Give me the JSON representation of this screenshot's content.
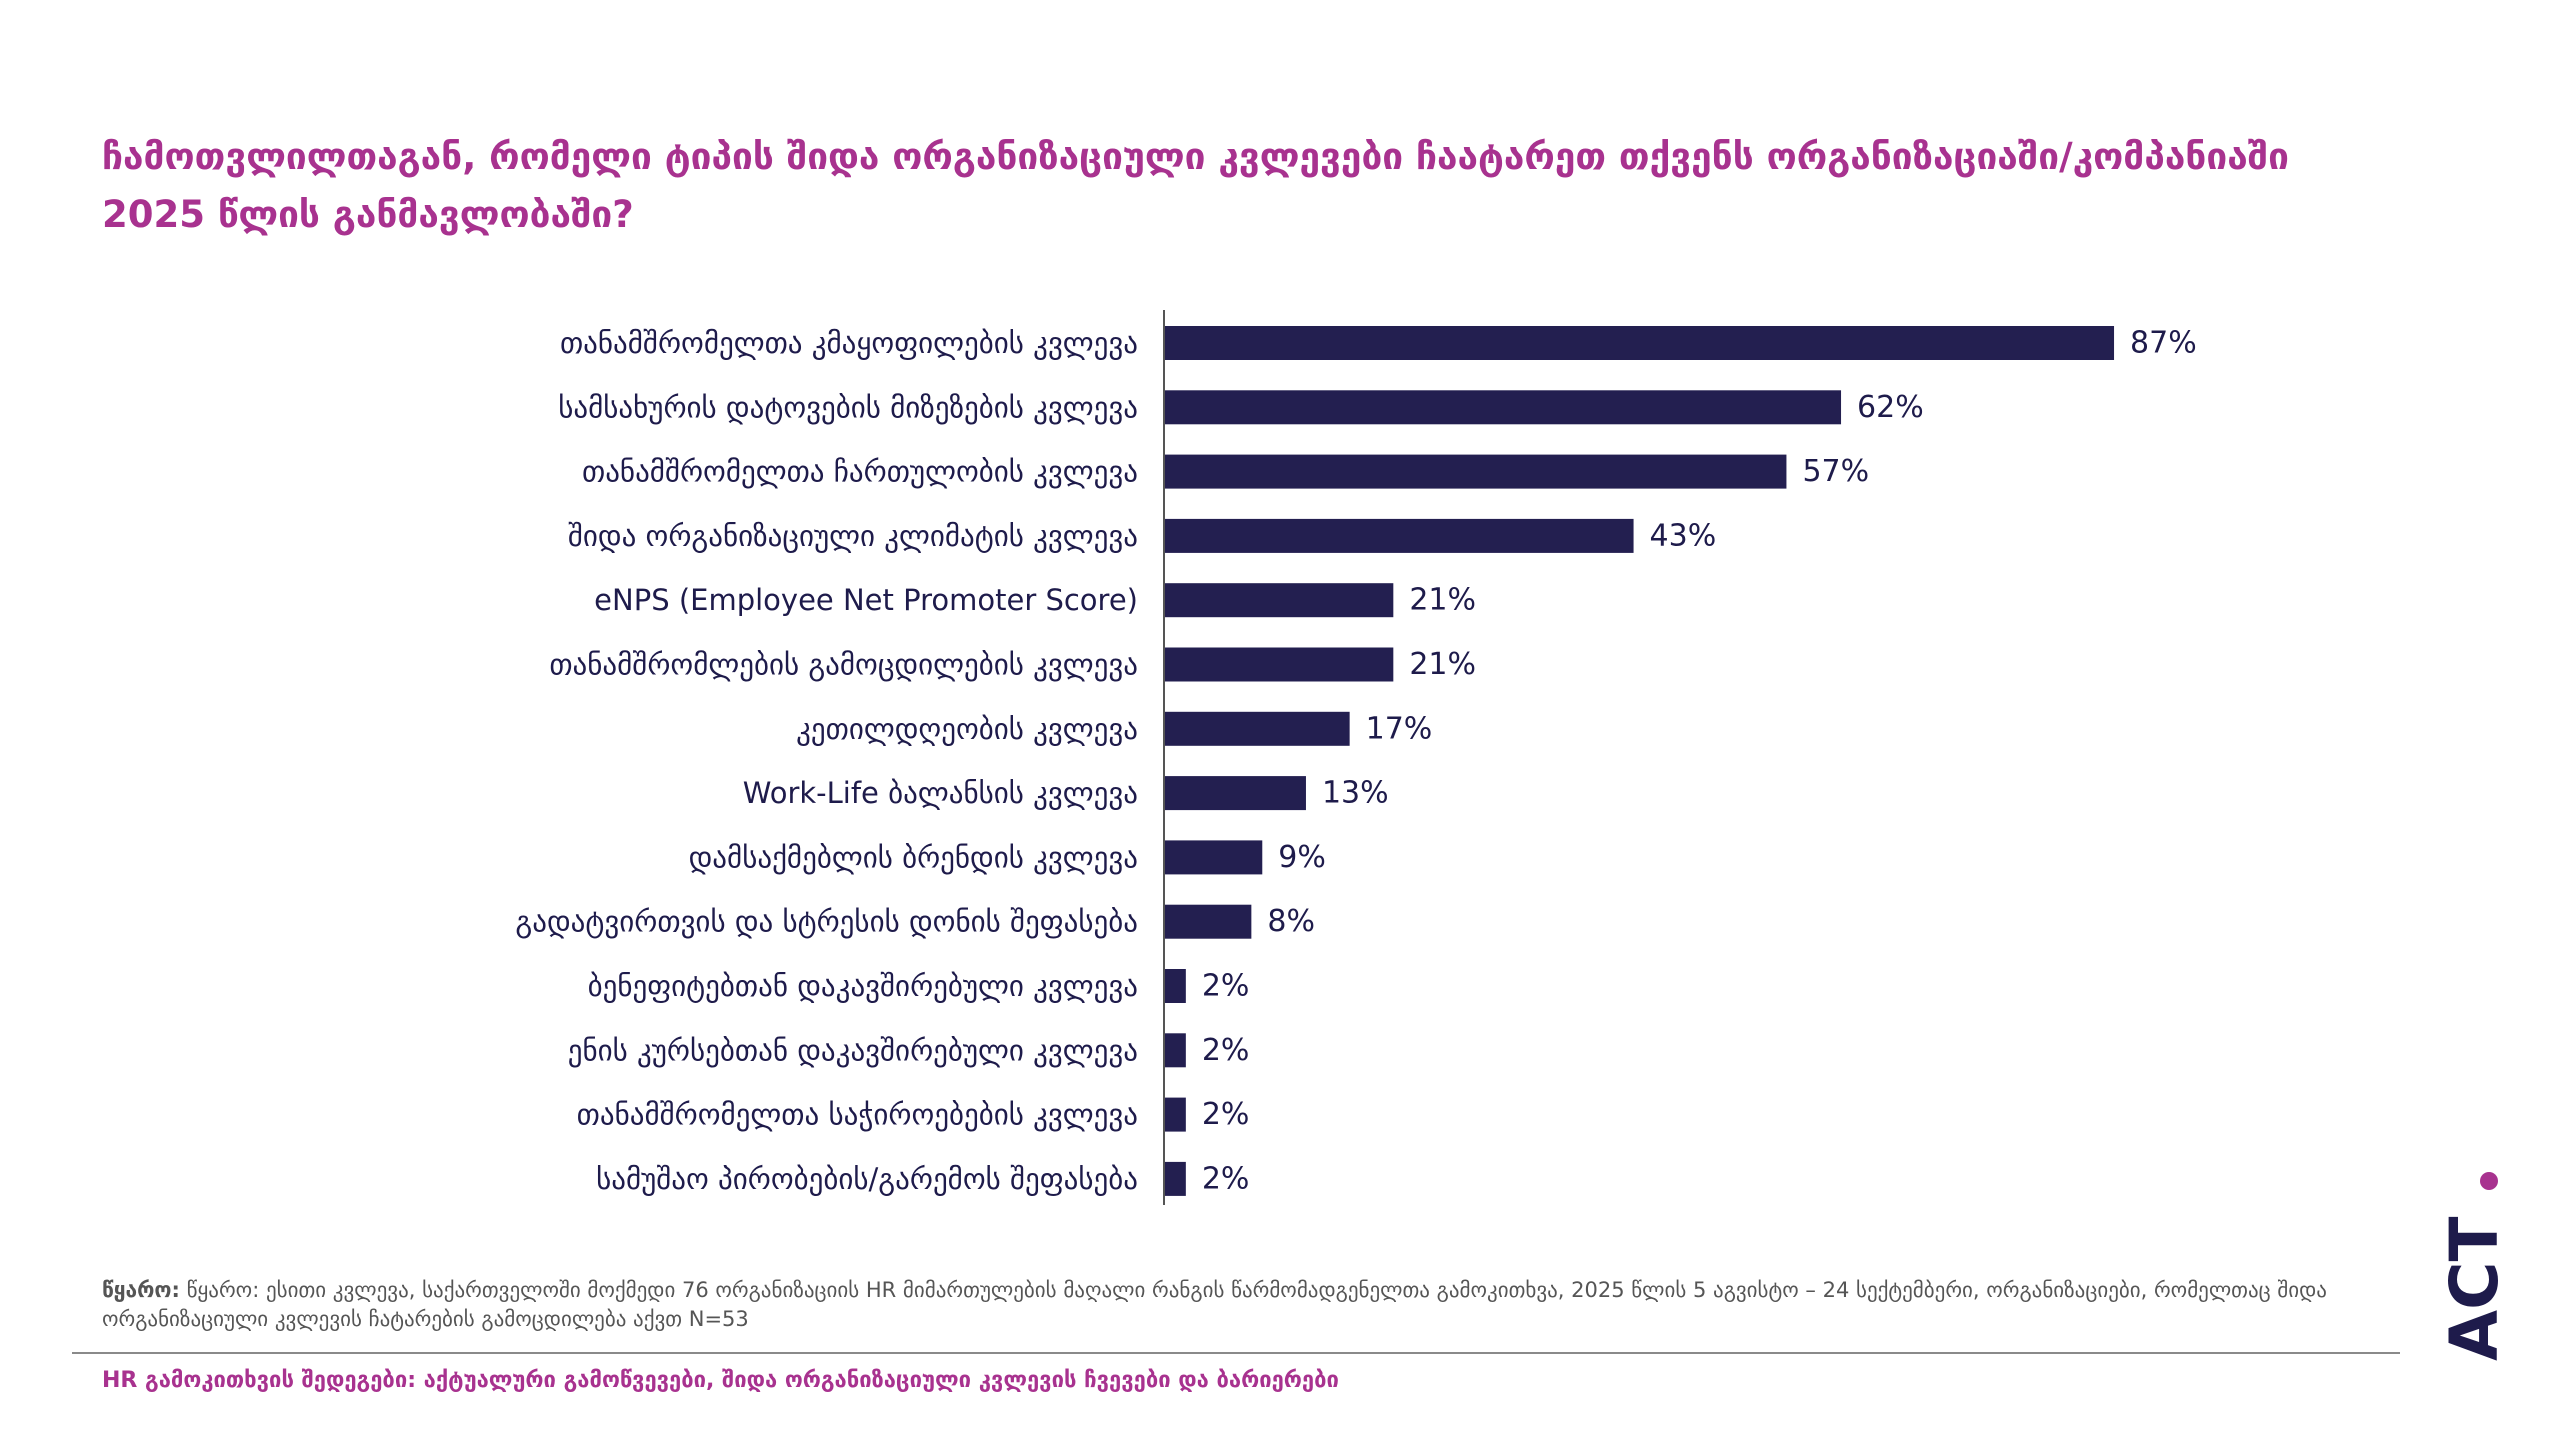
{
  "title": "ჩამოთვლილთაგან, რომელი ტიპის შიდა ორგანიზაციული კვლევები ჩაატარეთ თქვენს ორგანიზაციაში/კომპანიაში 2025 წლის განმავლობაში?",
  "chart_data": {
    "type": "bar",
    "orientation": "horizontal",
    "title": "ჩამოთვლილთაგან, რომელი ტიპის შიდა ორგანიზაციული კვლევები ჩაატარეთ თქვენს ორგანიზაციაში/კომპანიაში 2025 წლის განმავლობაში?",
    "categories": [
      "თანამშრომელთა კმაყოფილების კვლევა",
      "სამსახურის დატოვების მიზეზების კვლევა",
      "თანამშრომელთა ჩართულობის კვლევა",
      "შიდა ორგანიზაციული კლიმატის კვლევა",
      "eNPS (Employee Net Promoter Score)",
      "თანამშრომლების გამოცდილების კვლევა",
      "კეთილდღეობის კვლევა",
      "Work-Life ბალანსის კვლევა",
      "დამსაქმებლის ბრენდის კვლევა",
      "გადატვირთვის და სტრესის დონის შეფასება",
      "ბენეფიტებთან დაკავშირებული კვლევა",
      "ენის კურსებთან დაკავშირებული კვლევა",
      "თანამშრომელთა საჭიროებების კვლევა",
      "სამუშაო პირობების/გარემოს შეფასება"
    ],
    "values": [
      87,
      62,
      57,
      43,
      21,
      21,
      17,
      13,
      9,
      8,
      2,
      2,
      2,
      2
    ],
    "value_labels": [
      "87%",
      "62%",
      "57%",
      "43%",
      "21%",
      "21%",
      "17%",
      "13%",
      "9%",
      "8%",
      "2%",
      "2%",
      "2%",
      "2%"
    ],
    "unit": "%",
    "xlim": [
      0,
      100
    ],
    "grid": false,
    "bar_color": "#231f50"
  },
  "source": {
    "label": "წყარო:",
    "text": "წყარო: ესითი კვლევა, საქართველოში მოქმედი 76 ორგანიზაციის HR მიმართულების მაღალი რანგის წარმომადგენელთა გამოკითხვა, 2025 წლის 5 აგვისტო – 24 სექტემბერი, ორგანიზაციები, რომელთაც შიდა ორგანიზაციული კვლევის ჩატარების გამოცდილება აქვთ N=53"
  },
  "footer": "HR გამოკითხვის შედეგები: აქტუალური გამოწვევები, შიდა ორგანიზაციული კვლევის ჩვევები და ბარიერები",
  "logo": {
    "text": "ACT"
  },
  "colors": {
    "accent": "#a8328f",
    "bar": "#231f50",
    "text": "#1e1b4b"
  }
}
